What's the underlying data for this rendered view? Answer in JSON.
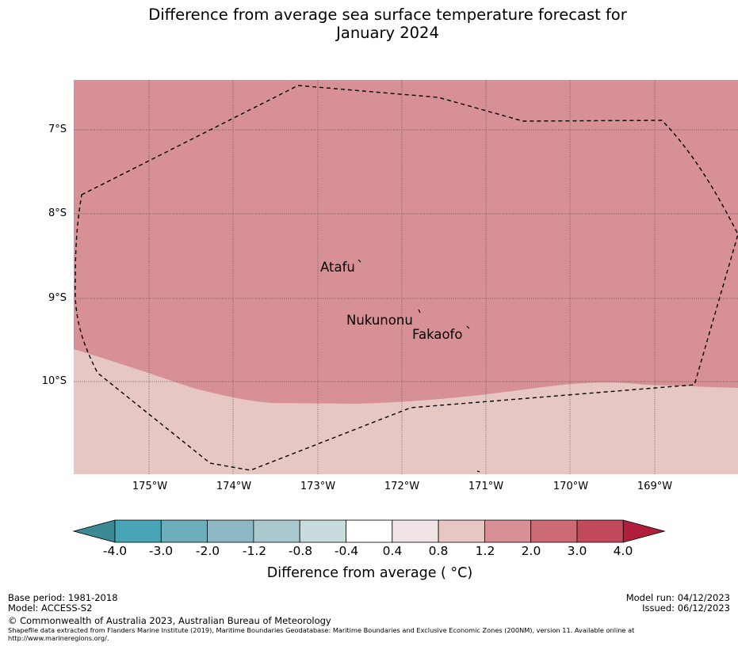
{
  "title": {
    "line1": "Difference from average sea surface temperature forecast for",
    "line2": "January 2024"
  },
  "map": {
    "latitude_labels": [
      "7°S",
      "8°S",
      "9°S",
      "10°S"
    ],
    "longitude_labels": [
      "175°W",
      "174°W",
      "173°W",
      "172°W",
      "171°W",
      "170°W",
      "169°W"
    ],
    "places": [
      "Atafu",
      "Nukunonu",
      "Fakaofo"
    ],
    "eez_boundary_style": "dashed",
    "anomaly_regions": [
      {
        "region": "north",
        "category": "1.2 to 2.0",
        "color": "#d69096"
      },
      {
        "region": "south",
        "category": "0.8 to 1.2",
        "color": "#e7c7c3"
      }
    ]
  },
  "colorbar": {
    "title": "Difference from average ( °C)",
    "tick_labels": [
      "-4.0",
      "-3.0",
      "-2.0",
      "-1.2",
      "-0.8",
      "-0.4",
      "0.4",
      "0.8",
      "1.2",
      "2.0",
      "3.0",
      "4.0"
    ],
    "colors": [
      "#3c8a96",
      "#47a5b5",
      "#6daebd",
      "#8db8c4",
      "#aac9cf",
      "#c8dcde",
      "#ffffff",
      "#f0e4e4",
      "#e7c7c3",
      "#d69096",
      "#cc6a75",
      "#c04a5a",
      "#b01e3c"
    ]
  },
  "footer": {
    "base_period": "Base period: 1981-2018",
    "model": "Model: ACCESS-S2",
    "copyright": "© Commonwealth of Australia 2023, Australian Bureau of Meteorology",
    "shapefile_note": "Shapefile data extracted from Flanders Marine Institute (2019), Maritime Boundaries Geodatabase: Maritime Boundaries and Exclusive Economic Zones (200NM), version 11. Available online at http://www.marineregions.org/.",
    "model_run": "Model run: 04/12/2023",
    "issued": "Issued: 06/12/2023"
  }
}
